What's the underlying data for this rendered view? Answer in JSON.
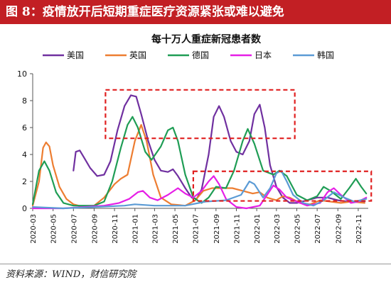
{
  "figure_title": "图 8：疫情放开后短期重症医疗资源紧张或难以避免",
  "source": "资料来源：WIND，财信研究院",
  "chart_data": {
    "type": "line",
    "title": "每十万人重症新冠患者数",
    "xlabel": "",
    "ylabel": "",
    "ylim": [
      0,
      10
    ],
    "yticks": [
      0,
      2,
      4,
      6,
      8,
      10
    ],
    "xlim": [
      "2020-03",
      "2022-12"
    ],
    "xticks": [
      "2020-03",
      "2020-05",
      "2020-07",
      "2020-09",
      "2020-11",
      "2021-01",
      "2021-03",
      "2021-05",
      "2021-07",
      "2021-09",
      "2021-11",
      "2022-01",
      "2022-03",
      "2022-05",
      "2022-07",
      "2022-09",
      "2022-11"
    ],
    "legend": "top",
    "grid": false,
    "series": [
      {
        "name": "美国",
        "color": "#7030a0",
        "points": [
          [
            "2020-07-01",
            2.8
          ],
          [
            "2020-07-08",
            4.2
          ],
          [
            "2020-07-20",
            4.3
          ],
          [
            "2020-08-01",
            3.8
          ],
          [
            "2020-08-20",
            3.0
          ],
          [
            "2020-09-10",
            2.4
          ],
          [
            "2020-10-01",
            2.5
          ],
          [
            "2020-10-20",
            3.5
          ],
          [
            "2020-11-10",
            5.8
          ],
          [
            "2020-12-01",
            7.6
          ],
          [
            "2020-12-20",
            8.4
          ],
          [
            "2021-01-05",
            8.3
          ],
          [
            "2021-01-20",
            7.0
          ],
          [
            "2021-02-10",
            5.0
          ],
          [
            "2021-03-01",
            3.6
          ],
          [
            "2021-03-20",
            2.8
          ],
          [
            "2021-04-10",
            2.7
          ],
          [
            "2021-04-25",
            2.9
          ],
          [
            "2021-05-10",
            2.4
          ],
          [
            "2021-06-01",
            1.5
          ],
          [
            "2021-06-20",
            0.8
          ],
          [
            "2021-07-05",
            0.7
          ],
          [
            "2021-07-20",
            1.4
          ],
          [
            "2021-08-10",
            4.0
          ],
          [
            "2021-08-25",
            6.8
          ],
          [
            "2021-09-10",
            7.6
          ],
          [
            "2021-09-25",
            6.8
          ],
          [
            "2021-10-15",
            5.0
          ],
          [
            "2021-11-01",
            4.2
          ],
          [
            "2021-11-20",
            4.0
          ],
          [
            "2021-12-10",
            5.0
          ],
          [
            "2021-12-25",
            7.0
          ],
          [
            "2022-01-10",
            7.7
          ],
          [
            "2022-01-25",
            6.0
          ],
          [
            "2022-02-10",
            3.2
          ],
          [
            "2022-03-01",
            1.6
          ],
          [
            "2022-03-20",
            0.8
          ],
          [
            "2022-04-10",
            0.4
          ],
          [
            "2022-05-01",
            0.4
          ],
          [
            "2022-06-01",
            0.6
          ],
          [
            "2022-07-01",
            0.8
          ],
          [
            "2022-08-01",
            0.8
          ],
          [
            "2022-09-01",
            0.6
          ],
          [
            "2022-10-01",
            0.5
          ],
          [
            "2022-11-20",
            0.5
          ]
        ]
      },
      {
        "name": "英国",
        "color": "#ed7d31",
        "points": [
          [
            "2020-03-01",
            0.2
          ],
          [
            "2020-03-20",
            2.0
          ],
          [
            "2020-04-01",
            4.5
          ],
          [
            "2020-04-10",
            4.9
          ],
          [
            "2020-04-20",
            4.6
          ],
          [
            "2020-05-01",
            3.2
          ],
          [
            "2020-05-20",
            1.6
          ],
          [
            "2020-06-10",
            0.7
          ],
          [
            "2020-07-01",
            0.3
          ],
          [
            "2020-08-01",
            0.1
          ],
          [
            "2020-09-01",
            0.2
          ],
          [
            "2020-10-01",
            0.8
          ],
          [
            "2020-11-01",
            1.8
          ],
          [
            "2020-11-20",
            2.2
          ],
          [
            "2020-12-10",
            2.5
          ],
          [
            "2021-01-01",
            5.0
          ],
          [
            "2021-01-20",
            6.2
          ],
          [
            "2021-02-05",
            5.0
          ],
          [
            "2021-02-25",
            2.5
          ],
          [
            "2021-03-20",
            0.8
          ],
          [
            "2021-04-20",
            0.3
          ],
          [
            "2021-06-01",
            0.2
          ],
          [
            "2021-07-01",
            0.6
          ],
          [
            "2021-07-25",
            1.3
          ],
          [
            "2021-08-20",
            1.5
          ],
          [
            "2021-09-20",
            1.5
          ],
          [
            "2021-10-20",
            1.5
          ],
          [
            "2021-11-20",
            1.3
          ],
          [
            "2021-12-20",
            1.1
          ],
          [
            "2022-01-10",
            1.2
          ],
          [
            "2022-02-01",
            0.8
          ],
          [
            "2022-03-01",
            0.6
          ],
          [
            "2022-03-20",
            0.9
          ],
          [
            "2022-04-10",
            0.8
          ],
          [
            "2022-05-10",
            0.4
          ],
          [
            "2022-06-10",
            0.3
          ],
          [
            "2022-07-10",
            0.6
          ],
          [
            "2022-08-10",
            0.5
          ],
          [
            "2022-09-10",
            0.4
          ],
          [
            "2022-10-10",
            0.5
          ],
          [
            "2022-11-20",
            0.4
          ]
        ]
      },
      {
        "name": "德国",
        "color": "#1f9d55",
        "points": [
          [
            "2020-03-01",
            0.3
          ],
          [
            "2020-03-20",
            2.8
          ],
          [
            "2020-04-05",
            3.5
          ],
          [
            "2020-04-20",
            2.8
          ],
          [
            "2020-05-10",
            1.2
          ],
          [
            "2020-06-01",
            0.4
          ],
          [
            "2020-07-01",
            0.2
          ],
          [
            "2020-09-01",
            0.2
          ],
          [
            "2020-10-01",
            0.5
          ],
          [
            "2020-10-25",
            2.0
          ],
          [
            "2020-11-20",
            4.5
          ],
          [
            "2020-12-10",
            6.2
          ],
          [
            "2020-12-25",
            6.8
          ],
          [
            "2021-01-10",
            6.0
          ],
          [
            "2021-02-01",
            4.2
          ],
          [
            "2021-02-20",
            3.6
          ],
          [
            "2021-03-20",
            4.6
          ],
          [
            "2021-04-10",
            5.8
          ],
          [
            "2021-04-25",
            6.0
          ],
          [
            "2021-05-10",
            5.0
          ],
          [
            "2021-06-01",
            2.5
          ],
          [
            "2021-06-25",
            0.8
          ],
          [
            "2021-07-20",
            0.4
          ],
          [
            "2021-08-10",
            0.8
          ],
          [
            "2021-09-01",
            1.6
          ],
          [
            "2021-10-01",
            1.5
          ],
          [
            "2021-10-25",
            2.8
          ],
          [
            "2021-11-20",
            5.0
          ],
          [
            "2021-12-05",
            5.9
          ],
          [
            "2021-12-25",
            4.8
          ],
          [
            "2022-01-20",
            2.8
          ],
          [
            "2022-02-20",
            2.5
          ],
          [
            "2022-03-10",
            2.8
          ],
          [
            "2022-04-01",
            2.4
          ],
          [
            "2022-05-01",
            1.0
          ],
          [
            "2022-06-01",
            0.6
          ],
          [
            "2022-07-01",
            0.9
          ],
          [
            "2022-07-20",
            1.6
          ],
          [
            "2022-08-10",
            1.3
          ],
          [
            "2022-09-10",
            0.7
          ],
          [
            "2022-10-05",
            1.5
          ],
          [
            "2022-10-25",
            2.2
          ],
          [
            "2022-11-10",
            1.6
          ],
          [
            "2022-11-25",
            1.1
          ]
        ]
      },
      {
        "name": "日本",
        "color": "#e61ee6",
        "points": [
          [
            "2020-03-01",
            0.0
          ],
          [
            "2020-06-01",
            0.0
          ],
          [
            "2020-08-01",
            0.1
          ],
          [
            "2020-10-01",
            0.2
          ],
          [
            "2020-11-15",
            0.4
          ],
          [
            "2020-12-15",
            0.7
          ],
          [
            "2021-01-10",
            1.2
          ],
          [
            "2021-01-25",
            1.3
          ],
          [
            "2021-02-15",
            0.8
          ],
          [
            "2021-03-10",
            0.6
          ],
          [
            "2021-04-10",
            1.0
          ],
          [
            "2021-05-10",
            1.5
          ],
          [
            "2021-06-01",
            1.1
          ],
          [
            "2021-06-25",
            0.8
          ],
          [
            "2021-07-20",
            1.3
          ],
          [
            "2021-08-10",
            2.0
          ],
          [
            "2021-08-25",
            2.4
          ],
          [
            "2021-09-10",
            1.8
          ],
          [
            "2021-10-01",
            0.7
          ],
          [
            "2021-11-01",
            0.1
          ],
          [
            "2021-12-01",
            0.0
          ],
          [
            "2022-01-10",
            0.2
          ],
          [
            "2022-02-01",
            1.0
          ],
          [
            "2022-02-20",
            1.7
          ],
          [
            "2022-03-10",
            1.4
          ],
          [
            "2022-04-01",
            0.8
          ],
          [
            "2022-05-01",
            0.5
          ],
          [
            "2022-06-01",
            0.2
          ],
          [
            "2022-07-10",
            0.4
          ],
          [
            "2022-08-01",
            1.2
          ],
          [
            "2022-08-20",
            1.5
          ],
          [
            "2022-09-10",
            1.0
          ],
          [
            "2022-10-10",
            0.4
          ],
          [
            "2022-11-01",
            0.5
          ],
          [
            "2022-11-25",
            0.8
          ]
        ]
      },
      {
        "name": "韩国",
        "color": "#5b9bd5",
        "points": [
          [
            "2020-03-01",
            0.1
          ],
          [
            "2020-06-01",
            0.0
          ],
          [
            "2020-09-01",
            0.1
          ],
          [
            "2020-12-01",
            0.2
          ],
          [
            "2021-01-01",
            0.3
          ],
          [
            "2021-03-01",
            0.2
          ],
          [
            "2021-06-01",
            0.2
          ],
          [
            "2021-08-01",
            0.5
          ],
          [
            "2021-10-01",
            0.6
          ],
          [
            "2021-11-15",
            1.0
          ],
          [
            "2021-12-10",
            2.0
          ],
          [
            "2021-12-25",
            1.8
          ],
          [
            "2022-01-20",
            0.8
          ],
          [
            "2022-02-10",
            1.5
          ],
          [
            "2022-03-01",
            2.6
          ],
          [
            "2022-03-15",
            2.8
          ],
          [
            "2022-04-01",
            2.0
          ],
          [
            "2022-04-20",
            1.0
          ],
          [
            "2022-05-20",
            0.4
          ],
          [
            "2022-06-20",
            0.2
          ],
          [
            "2022-07-20",
            0.6
          ],
          [
            "2022-08-20",
            1.2
          ],
          [
            "2022-09-20",
            0.8
          ],
          [
            "2022-10-20",
            0.5
          ],
          [
            "2022-11-25",
            0.7
          ]
        ]
      }
    ],
    "annotations": [
      {
        "type": "dashed-box",
        "x0": "2020-10-05",
        "x1": "2022-04-25",
        "y0": 5.2,
        "y1": 8.8,
        "color": "#e02020"
      },
      {
        "type": "dashed-box",
        "x0": "2021-06-25",
        "x1": "2022-12-10",
        "y0": 0.55,
        "y1": 2.75,
        "color": "#e02020"
      }
    ]
  }
}
